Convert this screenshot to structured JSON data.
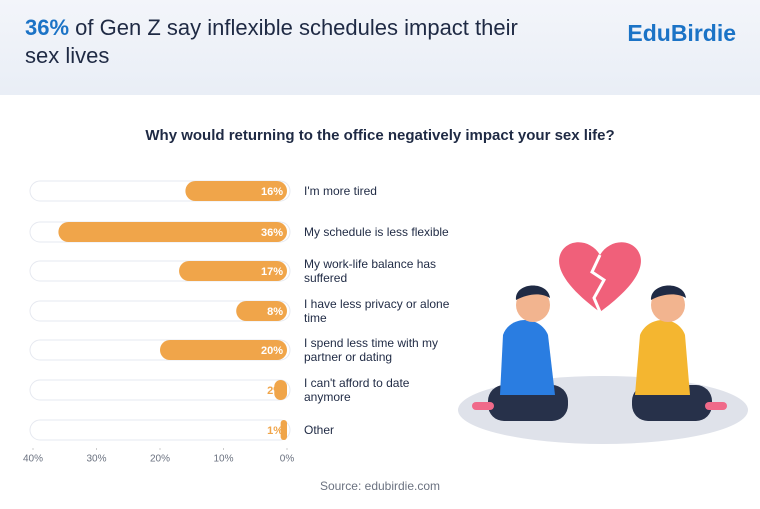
{
  "header": {
    "title_highlight": "36%",
    "title": "of Gen Z say inflexible schedules impact their sex lives",
    "brand": "EduBirdie"
  },
  "chart_data": {
    "type": "bar",
    "orientation": "horizontal",
    "title": "Why would returning to the office negatively impact your sex life?",
    "categories": [
      "I'm more tired",
      "My schedule is less flexible",
      "My work-life balance has suffered",
      "I have less privacy or alone time",
      "I spend less time with my partner or dating",
      "I can't afford to date anymore",
      "Other"
    ],
    "values": [
      16,
      36,
      17,
      8,
      20,
      2,
      1
    ],
    "value_labels": [
      "16%",
      "36%",
      "17%",
      "8%",
      "20%",
      "2%",
      "1%"
    ],
    "color": "#f0a54a",
    "xlim": [
      40,
      0
    ],
    "xticks": [
      {
        "value": 40,
        "label": "40%"
      },
      {
        "value": 30,
        "label": "30%"
      },
      {
        "value": 20,
        "label": "20%"
      },
      {
        "value": 10,
        "label": "10%"
      },
      {
        "value": 0,
        "label": "0%"
      }
    ]
  },
  "footer": {
    "source": "Source: edubirdie.com"
  }
}
